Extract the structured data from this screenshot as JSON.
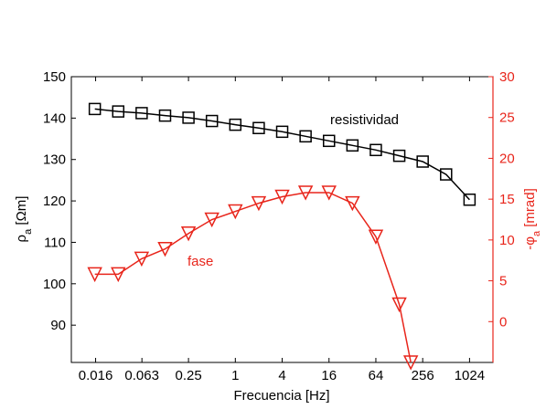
{
  "chart_data": {
    "type": "line",
    "xlabel": "Frecuencia [Hz]",
    "xscale": "log2",
    "xlim": [
      0.0078,
      2048
    ],
    "xticks": [
      0.016,
      0.063,
      0.25,
      1,
      4,
      16,
      64,
      256,
      1024
    ],
    "xtick_labels": [
      "0.016",
      "0.063",
      "0.25",
      "1",
      "4",
      "16",
      "64",
      "256",
      "1024"
    ],
    "left_axis": {
      "label_main": "ρ",
      "label_sub": "a",
      "label_unit": " [Ωm]",
      "ylim": [
        81,
        150
      ],
      "ticks": [
        90,
        100,
        110,
        120,
        130,
        140,
        150
      ],
      "color": "#000000"
    },
    "right_axis": {
      "label_pre": "-φ",
      "label_sub": "a",
      "label_unit": " [mrad]",
      "ylim": [
        -5,
        30
      ],
      "ticks": [
        0,
        5,
        10,
        15,
        20,
        25,
        30
      ],
      "color": "#e8251b"
    },
    "series": [
      {
        "name": "resistividad",
        "axis": "left",
        "color": "#000000",
        "marker": "square",
        "x": [
          0.015625,
          0.03125,
          0.0625,
          0.125,
          0.25,
          0.5,
          1,
          2,
          4,
          8,
          16,
          32,
          64,
          128,
          256,
          512,
          1024
        ],
        "y": [
          142.2,
          141.6,
          141.2,
          140.6,
          140.1,
          139.3,
          138.4,
          137.6,
          136.7,
          135.6,
          134.5,
          133.4,
          132.3,
          130.9,
          129.5,
          126.4,
          120.3
        ]
      },
      {
        "name": "fase",
        "axis": "right",
        "color": "#e8251b",
        "marker": "triangle-down",
        "x": [
          0.015625,
          0.03125,
          0.0625,
          0.125,
          0.25,
          0.5,
          1,
          2,
          4,
          8,
          16,
          32,
          64,
          128,
          180
        ],
        "y": [
          5.8,
          5.8,
          7.7,
          8.9,
          10.8,
          12.5,
          13.5,
          14.5,
          15.3,
          15.8,
          15.8,
          14.5,
          10.4,
          2.1,
          -5
        ]
      }
    ],
    "annotations": [
      {
        "text": "resistividad",
        "color": "#000000"
      },
      {
        "text": "fase",
        "color": "#e8251b"
      }
    ],
    "grid": false,
    "legend": "none"
  }
}
